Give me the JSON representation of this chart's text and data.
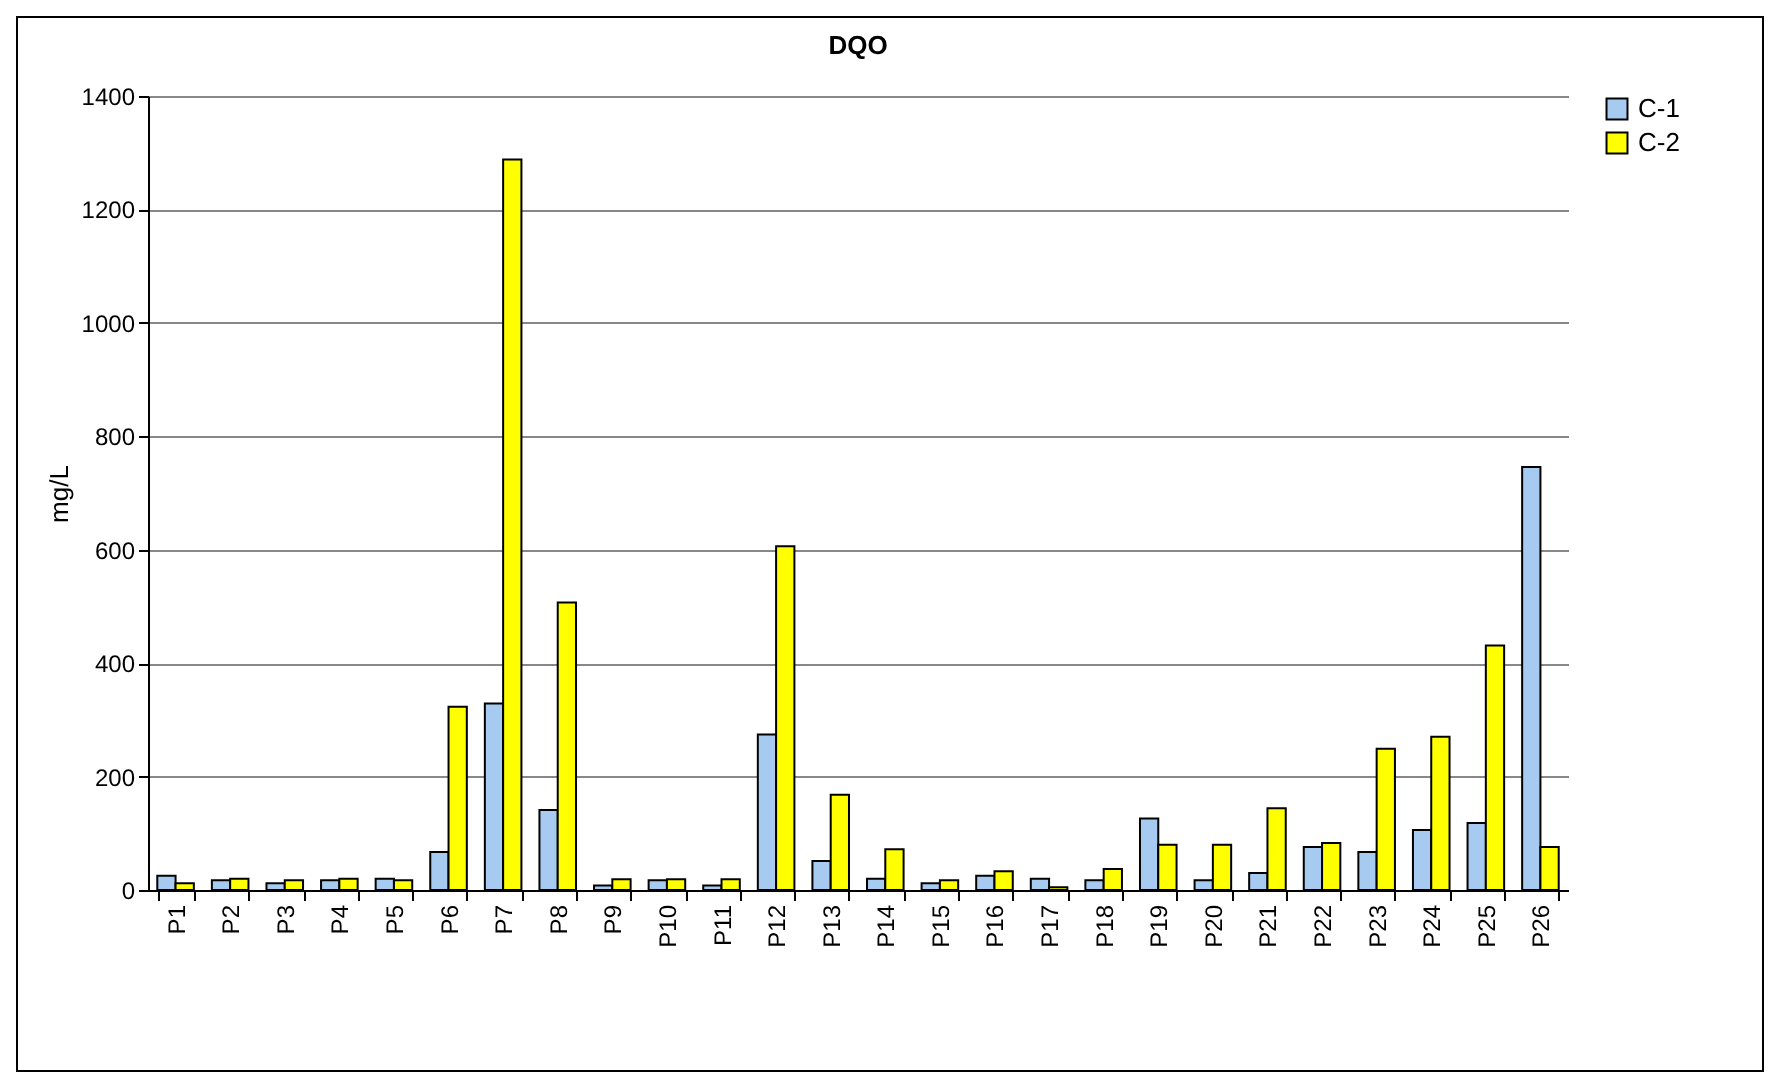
{
  "chart_data": {
    "type": "bar",
    "title": "DQO",
    "ylabel": "mg/L",
    "categories": [
      "P1",
      "P2",
      "P3",
      "P4",
      "P5",
      "P6",
      "P7",
      "P8",
      "P9",
      "P10",
      "P11",
      "P12",
      "P13",
      "P14",
      "P15",
      "P16",
      "P17",
      "P18",
      "P19",
      "P20",
      "P21",
      "P22",
      "P23",
      "P24",
      "P25",
      "P26"
    ],
    "series": [
      {
        "name": "C-1",
        "color": "#a6caf0",
        "values": [
          25,
          17,
          12,
          17,
          20,
          67,
          329,
          141,
          8,
          17,
          8,
          274,
          51,
          20,
          12,
          25,
          20,
          17,
          126,
          17,
          30,
          76,
          67,
          106,
          118,
          746
        ]
      },
      {
        "name": "C-2",
        "color": "#ffff00",
        "values": [
          12,
          20,
          17,
          20,
          17,
          323,
          1288,
          507,
          19,
          19,
          19,
          606,
          168,
          72,
          17,
          33,
          5,
          37,
          80,
          80,
          144,
          83,
          249,
          270,
          431,
          76
        ]
      }
    ],
    "ylim": [
      0,
      1400
    ],
    "yticks": [
      0,
      200,
      400,
      600,
      800,
      1000,
      1200,
      1400
    ],
    "grid": "y",
    "legend": "right"
  }
}
